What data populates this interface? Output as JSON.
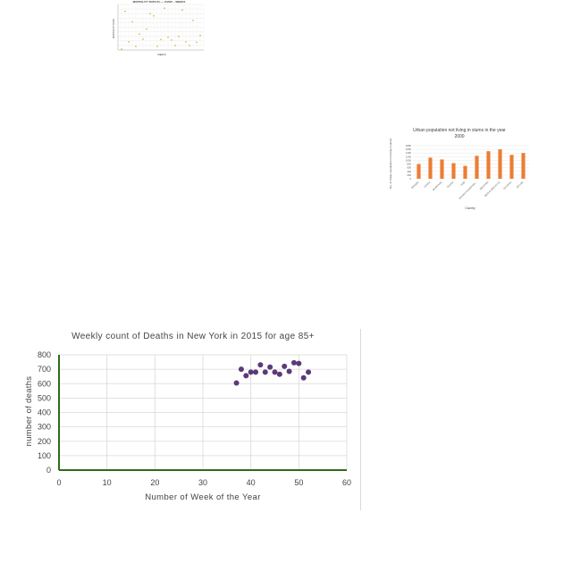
{
  "charts": [
    {
      "type": "scatter",
      "title": "MORTALITY RATE IN ---- OVER -- WEEKS",
      "xlabel": "WEEKS",
      "ylabel": "MORTALITY RATE",
      "x": [
        1,
        2,
        3,
        4,
        5,
        6,
        7,
        8,
        9,
        10,
        11,
        12,
        13,
        14,
        15,
        16,
        17,
        18,
        19,
        20,
        21,
        22,
        23
      ],
      "y": [
        0.2,
        8.5,
        1.8,
        6.2,
        0.8,
        3.5,
        2.4,
        4.6,
        8.0,
        7.5,
        0.8,
        2.3,
        9.2,
        2.8,
        2.2,
        1.0,
        3.0,
        8.8,
        1.8,
        1.0,
        6.5,
        1.7,
        3.2
      ],
      "ylim": [
        0,
        10
      ],
      "xlim": [
        0,
        24
      ],
      "color": "#d4a017",
      "grid": true
    },
    {
      "type": "bar",
      "title": "Urban population not living in slums in the year 2000",
      "xlabel": "Country",
      "ylabel": "No. of Urban population not living in slums",
      "categories": [
        "Ethiopia",
        "Ghana",
        "Guatemala",
        "Guinea",
        "Haiti",
        "Jamaica Guatemala...",
        "DEG Kids",
        "DEG & DEG-ki Lai",
        "Gil shoes",
        "Gil Laid"
      ],
      "values": [
        800,
        1150,
        1050,
        850,
        700,
        1250,
        1500,
        1600,
        1300,
        1400
      ],
      "yticks": [
        1800,
        1600,
        1400,
        1200,
        1000,
        800,
        600,
        400,
        200,
        0
      ],
      "ylim": [
        0,
        1800
      ],
      "color": "#ed7d31"
    },
    {
      "type": "scatter",
      "title": "Weekly count of Deaths in New York in 2015 for age 85+",
      "xlabel": "Number of Week of the Year",
      "ylabel": "number of deaths",
      "x": [
        37,
        38,
        39,
        40,
        41,
        42,
        43,
        44,
        45,
        46,
        47,
        48,
        49,
        50,
        51,
        52
      ],
      "y": [
        605,
        700,
        655,
        680,
        680,
        730,
        680,
        715,
        680,
        665,
        720,
        685,
        745,
        740,
        640,
        680
      ],
      "xticks": [
        0,
        10,
        20,
        30,
        40,
        50,
        60
      ],
      "yticks": [
        0,
        100,
        200,
        300,
        400,
        500,
        600,
        700,
        800
      ],
      "xlim": [
        0,
        60
      ],
      "ylim": [
        0,
        800
      ],
      "color": "#5b3a7a",
      "axis_color": "#2e6b1a",
      "grid": true
    }
  ]
}
